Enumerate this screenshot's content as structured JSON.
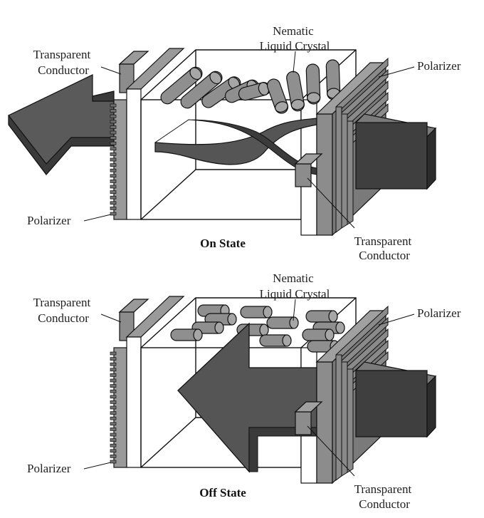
{
  "colors": {
    "arrow_face": "#595959",
    "arrow_side": "#3a3a3a",
    "plate_gray": "#8c8c8c",
    "crystal_gray": "#8f8f8f",
    "outline": "#111111"
  },
  "panels": [
    {
      "id": "on",
      "caption": "On State",
      "labels": {
        "transparent_conductor_left": [
          "Transparent",
          "Conductor"
        ],
        "nematic": [
          "Nematic",
          "Liquid Crystal"
        ],
        "polarizer_right": "Polarizer",
        "polarizer_left": "Polarizer",
        "transparent_conductor_right": [
          "Transparent",
          "Conductor"
        ]
      }
    },
    {
      "id": "off",
      "caption": "Off State",
      "labels": {
        "transparent_conductor_left": [
          "Transparent",
          "Conductor"
        ],
        "nematic": [
          "Nematic",
          "Liquid Crystal"
        ],
        "polarizer_right": "Polarizer",
        "polarizer_left": "Polarizer",
        "transparent_conductor_right": [
          "Transparent",
          "Conductor"
        ]
      }
    }
  ],
  "icons": {
    "cell": "lcd-cell-icon",
    "light_arrow": "light-arrow-icon",
    "crystal": "liquid-crystal-cylinder-icon"
  }
}
